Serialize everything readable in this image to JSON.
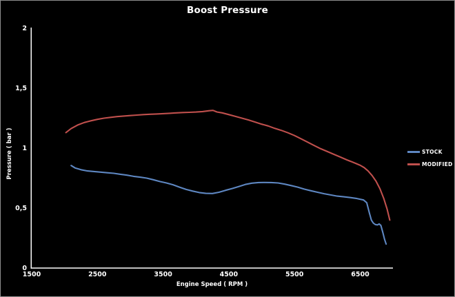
{
  "window_title": "Boost Pressure",
  "colors": {
    "background": "#000000",
    "axis": "#FFFFFF",
    "text": "#FFFFFF",
    "frame_border": "#8F8F8F",
    "stock_line": "#5E87C2",
    "modified_line": "#C0504D"
  },
  "chart_data": {
    "type": "line",
    "title": "Boost Pressure",
    "xlabel": "Engine Speed ( RPM )",
    "ylabel": "Pressure ( bar )",
    "xlim": [
      1500,
      7010
    ],
    "ylim": [
      0,
      2
    ],
    "grid": false,
    "legend_position": "right",
    "x_ticks": [
      {
        "label": "1500",
        "value": 1500
      },
      {
        "label": "2500",
        "value": 2500
      },
      {
        "label": "3500",
        "value": 3500
      },
      {
        "label": "4500",
        "value": 4500
      },
      {
        "label": "5500",
        "value": 5500
      },
      {
        "label": "6500",
        "value": 6500
      }
    ],
    "y_ticks": [
      {
        "label": "0",
        "value": 0
      },
      {
        "label": "0,5",
        "value": 0.5
      },
      {
        "label": "1",
        "value": 1
      },
      {
        "label": "1,5",
        "value": 1.5
      },
      {
        "label": "2",
        "value": 2
      }
    ],
    "series": [
      {
        "name": "STOCK",
        "color": "#5E87C2",
        "points": [
          [
            2100,
            0.855
          ],
          [
            2160,
            0.835
          ],
          [
            2250,
            0.82
          ],
          [
            2350,
            0.81
          ],
          [
            2450,
            0.805
          ],
          [
            2550,
            0.8
          ],
          [
            2650,
            0.795
          ],
          [
            2750,
            0.79
          ],
          [
            2850,
            0.782
          ],
          [
            2950,
            0.775
          ],
          [
            3050,
            0.765
          ],
          [
            3150,
            0.758
          ],
          [
            3250,
            0.75
          ],
          [
            3350,
            0.737
          ],
          [
            3450,
            0.722
          ],
          [
            3550,
            0.71
          ],
          [
            3650,
            0.695
          ],
          [
            3750,
            0.675
          ],
          [
            3850,
            0.656
          ],
          [
            3950,
            0.642
          ],
          [
            4050,
            0.63
          ],
          [
            4150,
            0.623
          ],
          [
            4250,
            0.622
          ],
          [
            4350,
            0.632
          ],
          [
            4450,
            0.648
          ],
          [
            4550,
            0.663
          ],
          [
            4650,
            0.68
          ],
          [
            4750,
            0.697
          ],
          [
            4850,
            0.708
          ],
          [
            4950,
            0.713
          ],
          [
            5050,
            0.714
          ],
          [
            5150,
            0.713
          ],
          [
            5250,
            0.71
          ],
          [
            5350,
            0.7
          ],
          [
            5450,
            0.688
          ],
          [
            5550,
            0.675
          ],
          [
            5650,
            0.658
          ],
          [
            5750,
            0.645
          ],
          [
            5850,
            0.632
          ],
          [
            5950,
            0.62
          ],
          [
            6050,
            0.61
          ],
          [
            6150,
            0.6
          ],
          [
            6250,
            0.594
          ],
          [
            6350,
            0.588
          ],
          [
            6450,
            0.58
          ],
          [
            6550,
            0.568
          ],
          [
            6600,
            0.545
          ],
          [
            6640,
            0.46
          ],
          [
            6670,
            0.4
          ],
          [
            6700,
            0.375
          ],
          [
            6730,
            0.363
          ],
          [
            6760,
            0.36
          ],
          [
            6790,
            0.368
          ],
          [
            6815,
            0.355
          ],
          [
            6845,
            0.295
          ],
          [
            6870,
            0.24
          ],
          [
            6895,
            0.2
          ]
        ]
      },
      {
        "name": "MODIFIED",
        "color": "#C0504D",
        "points": [
          [
            2020,
            1.13
          ],
          [
            2100,
            1.163
          ],
          [
            2200,
            1.193
          ],
          [
            2300,
            1.214
          ],
          [
            2400,
            1.228
          ],
          [
            2500,
            1.24
          ],
          [
            2600,
            1.25
          ],
          [
            2700,
            1.257
          ],
          [
            2800,
            1.263
          ],
          [
            2900,
            1.268
          ],
          [
            3000,
            1.272
          ],
          [
            3100,
            1.276
          ],
          [
            3200,
            1.28
          ],
          [
            3300,
            1.283
          ],
          [
            3400,
            1.285
          ],
          [
            3500,
            1.288
          ],
          [
            3600,
            1.291
          ],
          [
            3700,
            1.294
          ],
          [
            3800,
            1.297
          ],
          [
            3900,
            1.299
          ],
          [
            4000,
            1.301
          ],
          [
            4100,
            1.305
          ],
          [
            4200,
            1.312
          ],
          [
            4260,
            1.315
          ],
          [
            4320,
            1.302
          ],
          [
            4400,
            1.294
          ],
          [
            4500,
            1.28
          ],
          [
            4600,
            1.265
          ],
          [
            4700,
            1.25
          ],
          [
            4800,
            1.235
          ],
          [
            4900,
            1.218
          ],
          [
            5000,
            1.2
          ],
          [
            5100,
            1.185
          ],
          [
            5200,
            1.165
          ],
          [
            5300,
            1.148
          ],
          [
            5400,
            1.128
          ],
          [
            5500,
            1.105
          ],
          [
            5600,
            1.078
          ],
          [
            5700,
            1.05
          ],
          [
            5800,
            1.022
          ],
          [
            5900,
            0.995
          ],
          [
            6000,
            0.972
          ],
          [
            6100,
            0.948
          ],
          [
            6200,
            0.925
          ],
          [
            6300,
            0.902
          ],
          [
            6400,
            0.88
          ],
          [
            6500,
            0.857
          ],
          [
            6560,
            0.838
          ],
          [
            6620,
            0.81
          ],
          [
            6680,
            0.772
          ],
          [
            6740,
            0.725
          ],
          [
            6800,
            0.662
          ],
          [
            6860,
            0.578
          ],
          [
            6910,
            0.49
          ],
          [
            6950,
            0.4
          ]
        ]
      }
    ]
  }
}
